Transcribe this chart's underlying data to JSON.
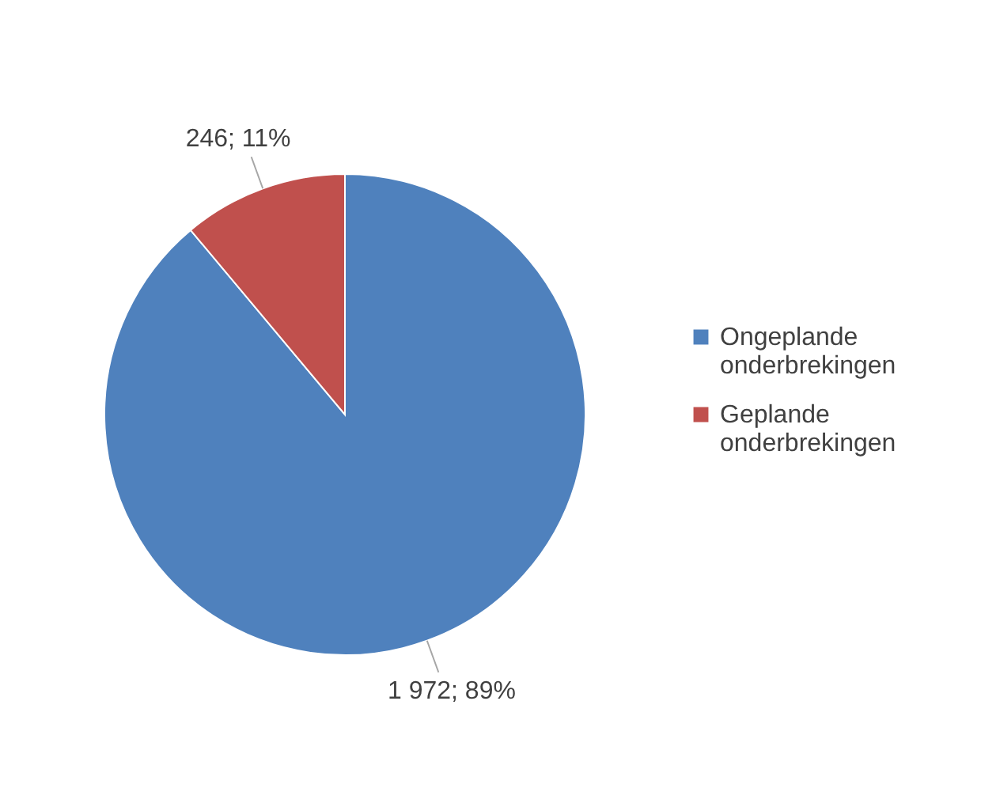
{
  "chart_data": {
    "type": "pie",
    "categories": [
      "Ongeplande onderbrekingen",
      "Geplande onderbrekingen"
    ],
    "values": [
      1972,
      246
    ],
    "colors": [
      "#4f81bd",
      "#c0504d"
    ],
    "value_labels": [
      "1 972; 89%",
      "246; 11%"
    ],
    "legend": "right"
  }
}
